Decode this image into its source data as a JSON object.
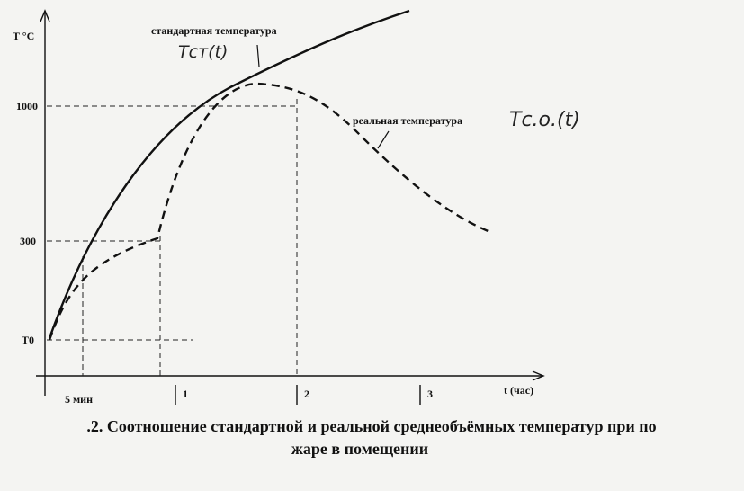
{
  "figure": {
    "y_axis_label": "T °C",
    "x_axis_label": "t (час)",
    "y_tick_labels": [
      "1000",
      "300",
      "T0"
    ],
    "x_tick_labels": [
      "5 мин",
      "1",
      "2",
      "3"
    ],
    "standard_label": "стандартная температура",
    "standard_handwritten": "Tст(t)",
    "real_label": "реальная температура",
    "real_handwritten": "Tс.о.(t)"
  },
  "caption": {
    "line1": ".2. Соотношение стандартной и реальной среднеобъёмных температур при по",
    "line2": "жаре в помещении"
  }
}
